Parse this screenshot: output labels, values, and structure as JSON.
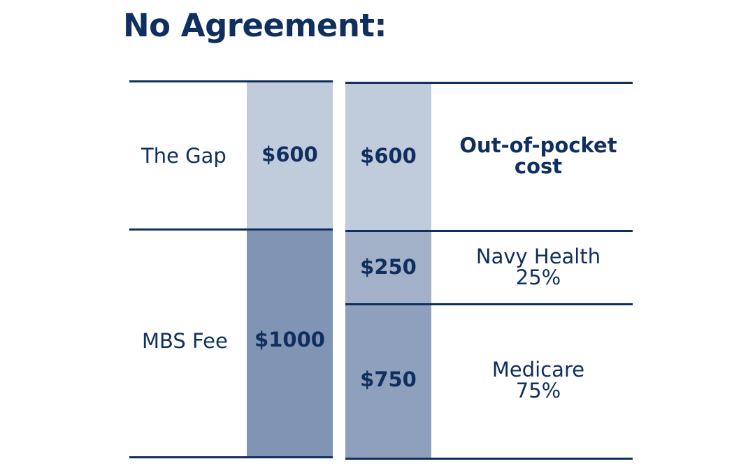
{
  "title": "No Agreement:",
  "colors": {
    "navy": "#0f2f5f",
    "gap_fill": "#c0cbdc",
    "mbs_fill": "#8094b3",
    "navy_health_fill": "#a2b1c8",
    "medicare_fill": "#8ea0bc"
  },
  "left": {
    "gap_label": "The Gap",
    "gap_amount": "$600",
    "mbs_label": "MBS Fee",
    "mbs_amount": "$1000"
  },
  "right": {
    "out_of_pocket_amount": "$600",
    "out_of_pocket_line1": "Out-of-pocket",
    "out_of_pocket_line2": "cost",
    "navy_health_amount": "$250",
    "navy_health_line1": "Navy Health",
    "navy_health_line2": "25%",
    "medicare_amount": "$750",
    "medicare_line1": "Medicare",
    "medicare_line2": "75%"
  }
}
